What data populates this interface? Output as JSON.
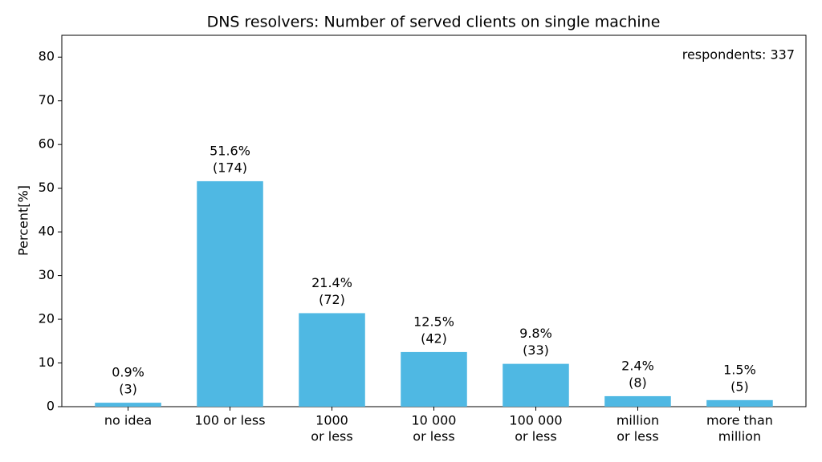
{
  "chart_data": {
    "type": "bar",
    "title": "DNS resolvers: Number of served clients on single machine",
    "y_label": "Percent[%]",
    "annotation": "respondents: 337",
    "categories": [
      [
        "no idea"
      ],
      [
        "100 or less"
      ],
      [
        "1000",
        "or less"
      ],
      [
        "10 000",
        "or less"
      ],
      [
        "100 000",
        "or less"
      ],
      [
        "million",
        "or less"
      ],
      [
        "more than",
        "million"
      ]
    ],
    "values": [
      0.9,
      51.6,
      21.4,
      12.5,
      9.8,
      2.4,
      1.5
    ],
    "value_labels": [
      "0.9%",
      "51.6%",
      "21.4%",
      "12.5%",
      "9.8%",
      "2.4%",
      "1.5%"
    ],
    "count_labels": [
      "(3)",
      "(174)",
      "(72)",
      "(42)",
      "(33)",
      "(8)",
      "(5)"
    ],
    "color": "#4fb8e3",
    "ylim": [
      0,
      85
    ],
    "yticks": [
      0,
      10,
      20,
      30,
      40,
      50,
      60,
      70,
      80
    ],
    "grid": false
  }
}
